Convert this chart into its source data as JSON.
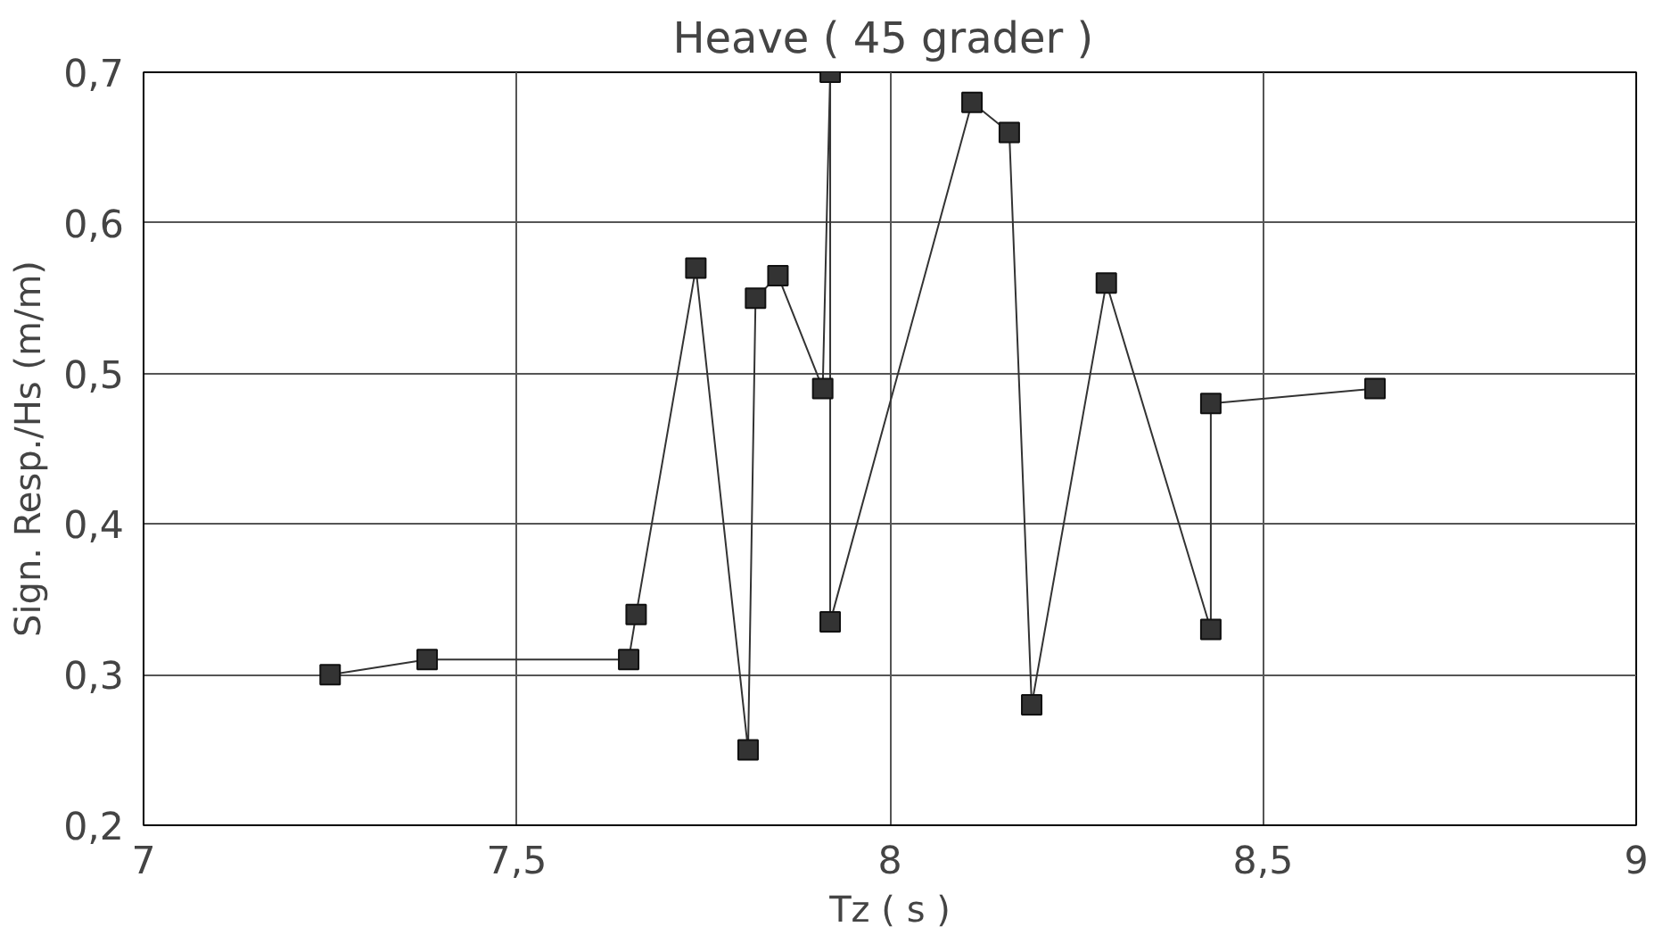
{
  "chart_data": {
    "type": "line",
    "title": "Heave  ( 45 grader )",
    "xlabel": "Tz ( s )",
    "ylabel": "Sign. Resp./Hs (m/m)",
    "x": [
      7.25,
      7.38,
      7.65,
      7.66,
      7.74,
      7.81,
      7.82,
      7.85,
      7.91,
      7.92,
      7.92,
      8.11,
      8.16,
      8.19,
      8.29,
      8.43,
      8.43,
      8.65
    ],
    "series": [
      {
        "color": "#333333",
        "values": [
          0.3,
          0.31,
          0.31,
          0.34,
          0.57,
          0.25,
          0.55,
          0.565,
          0.49,
          0.7,
          0.335,
          0.68,
          0.66,
          0.28,
          0.56,
          0.33,
          0.48,
          0.49
        ]
      }
    ],
    "xlim": [
      7,
      9
    ],
    "xticks": [
      7,
      {
        "value": 7.5,
        "label": "7,5"
      },
      8,
      {
        "value": 8.5,
        "label": "8,5"
      },
      9
    ],
    "ylim": [
      0.2,
      0.7
    ],
    "yticks": [
      {
        "value": 0.2,
        "label": "0,2"
      },
      {
        "value": 0.3,
        "label": "0,3"
      },
      {
        "value": 0.4,
        "label": "0,4"
      },
      {
        "value": 0.5,
        "label": "0,5"
      },
      {
        "value": 0.6,
        "label": "0,6"
      },
      {
        "value": 0.7,
        "label": "0,7"
      }
    ],
    "grid": true,
    "marker": "square",
    "line_style": "solid"
  }
}
